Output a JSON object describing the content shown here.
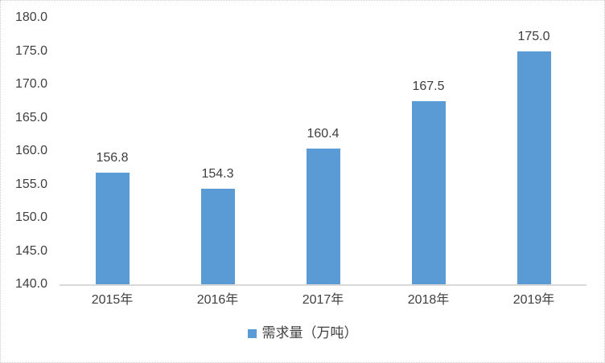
{
  "chart_data": {
    "type": "bar",
    "title": "",
    "categories": [
      "2015年",
      "2016年",
      "2017年",
      "2018年",
      "2019年"
    ],
    "values": [
      156.8,
      154.3,
      160.4,
      167.5,
      175.0
    ],
    "data_labels": [
      "156.8",
      "154.3",
      "160.4",
      "167.5",
      "175.0"
    ],
    "series": [
      {
        "name": "需求量（万吨）",
        "values": [
          156.8,
          154.3,
          160.4,
          167.5,
          175.0
        ]
      }
    ],
    "xlabel": "",
    "ylabel": "",
    "ylim": [
      140,
      180
    ],
    "y_tick_step": 5,
    "y_ticks": [
      "140.0",
      "145.0",
      "150.0",
      "155.0",
      "160.0",
      "165.0",
      "170.0",
      "175.0",
      "180.0"
    ],
    "grid": "off",
    "legend_position": "bottom",
    "colors": {
      "bar": "#5B9BD5",
      "axis_line": "#d9d9d9",
      "text": "#404040",
      "border": "#cfcfcf"
    }
  },
  "legend": {
    "label": "需求量（万吨）",
    "marker": "legend-square-icon"
  }
}
